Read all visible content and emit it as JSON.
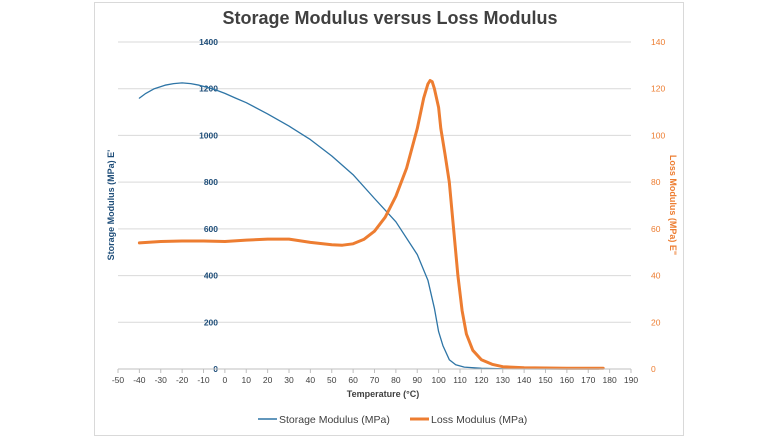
{
  "chart_data": {
    "type": "line",
    "title": "Storage Modulus versus Loss Modulus",
    "xlabel": "Temperature (°C)",
    "ylabel_left": "Storage Modulus (MPa) E'",
    "ylabel_right": "Loss Modulus (MPa) E\"",
    "xlim": [
      -50,
      190
    ],
    "x_ticks": [
      "-50",
      "-40",
      "-30",
      "-20",
      "-10",
      "0",
      "10",
      "20",
      "30",
      "40",
      "50",
      "60",
      "70",
      "80",
      "90",
      "100",
      "110",
      "120",
      "130",
      "140",
      "150",
      "160",
      "170",
      "180",
      "190"
    ],
    "ylim_left": [
      0,
      1400
    ],
    "y_ticks_left": [
      "0",
      "200",
      "400",
      "600",
      "800",
      "1000",
      "1200",
      "1400"
    ],
    "ylim_right": [
      0,
      140
    ],
    "y_ticks_right": [
      "0",
      "20",
      "40",
      "60",
      "80",
      "100",
      "120",
      "140"
    ],
    "grid": "horizontal",
    "legend_position": "bottom",
    "colors": {
      "storage": "#2e75a6",
      "loss": "#ed7d31",
      "grid": "#d9d9d9",
      "tick_left": "#1f4e79",
      "tick_right": "#ed7d31"
    },
    "series": [
      {
        "name": "Storage Modulus (MPa)",
        "axis": "left",
        "points": [
          [
            -40,
            1160
          ],
          [
            -37,
            1180
          ],
          [
            -33,
            1200
          ],
          [
            -28,
            1215
          ],
          [
            -24,
            1222
          ],
          [
            -20,
            1225
          ],
          [
            -16,
            1222
          ],
          [
            -12,
            1215
          ],
          [
            -8,
            1205
          ],
          [
            -4,
            1194
          ],
          [
            0,
            1180
          ],
          [
            5,
            1160
          ],
          [
            10,
            1140
          ],
          [
            20,
            1092
          ],
          [
            30,
            1040
          ],
          [
            40,
            982
          ],
          [
            50,
            912
          ],
          [
            60,
            832
          ],
          [
            70,
            730
          ],
          [
            80,
            630
          ],
          [
            90,
            490
          ],
          [
            95,
            380
          ],
          [
            98,
            260
          ],
          [
            100,
            160
          ],
          [
            102,
            100
          ],
          [
            105,
            40
          ],
          [
            108,
            18
          ],
          [
            112,
            8
          ],
          [
            120,
            3
          ],
          [
            130,
            1
          ],
          [
            150,
            0
          ],
          [
            175,
            0
          ]
        ]
      },
      {
        "name": "Loss Modulus (MPa)",
        "axis": "right",
        "points": [
          [
            -40,
            54
          ],
          [
            -30,
            54.6
          ],
          [
            -20,
            54.8
          ],
          [
            -10,
            54.8
          ],
          [
            0,
            54.6
          ],
          [
            10,
            55.2
          ],
          [
            20,
            55.6
          ],
          [
            30,
            55.6
          ],
          [
            40,
            54.2
          ],
          [
            50,
            53.2
          ],
          [
            55,
            53
          ],
          [
            60,
            53.6
          ],
          [
            65,
            55.5
          ],
          [
            70,
            59
          ],
          [
            75,
            65
          ],
          [
            80,
            74
          ],
          [
            85,
            86
          ],
          [
            90,
            103
          ],
          [
            93,
            116
          ],
          [
            95,
            122
          ],
          [
            96,
            123.5
          ],
          [
            97,
            123
          ],
          [
            98,
            120
          ],
          [
            100,
            112
          ],
          [
            101,
            103
          ],
          [
            103,
            92
          ],
          [
            105,
            80
          ],
          [
            107,
            60
          ],
          [
            109,
            40
          ],
          [
            111,
            25
          ],
          [
            113,
            15
          ],
          [
            116,
            8
          ],
          [
            120,
            4
          ],
          [
            125,
            2
          ],
          [
            130,
            1
          ],
          [
            140,
            0.5
          ],
          [
            160,
            0.3
          ],
          [
            177,
            0.3
          ]
        ]
      }
    ]
  }
}
